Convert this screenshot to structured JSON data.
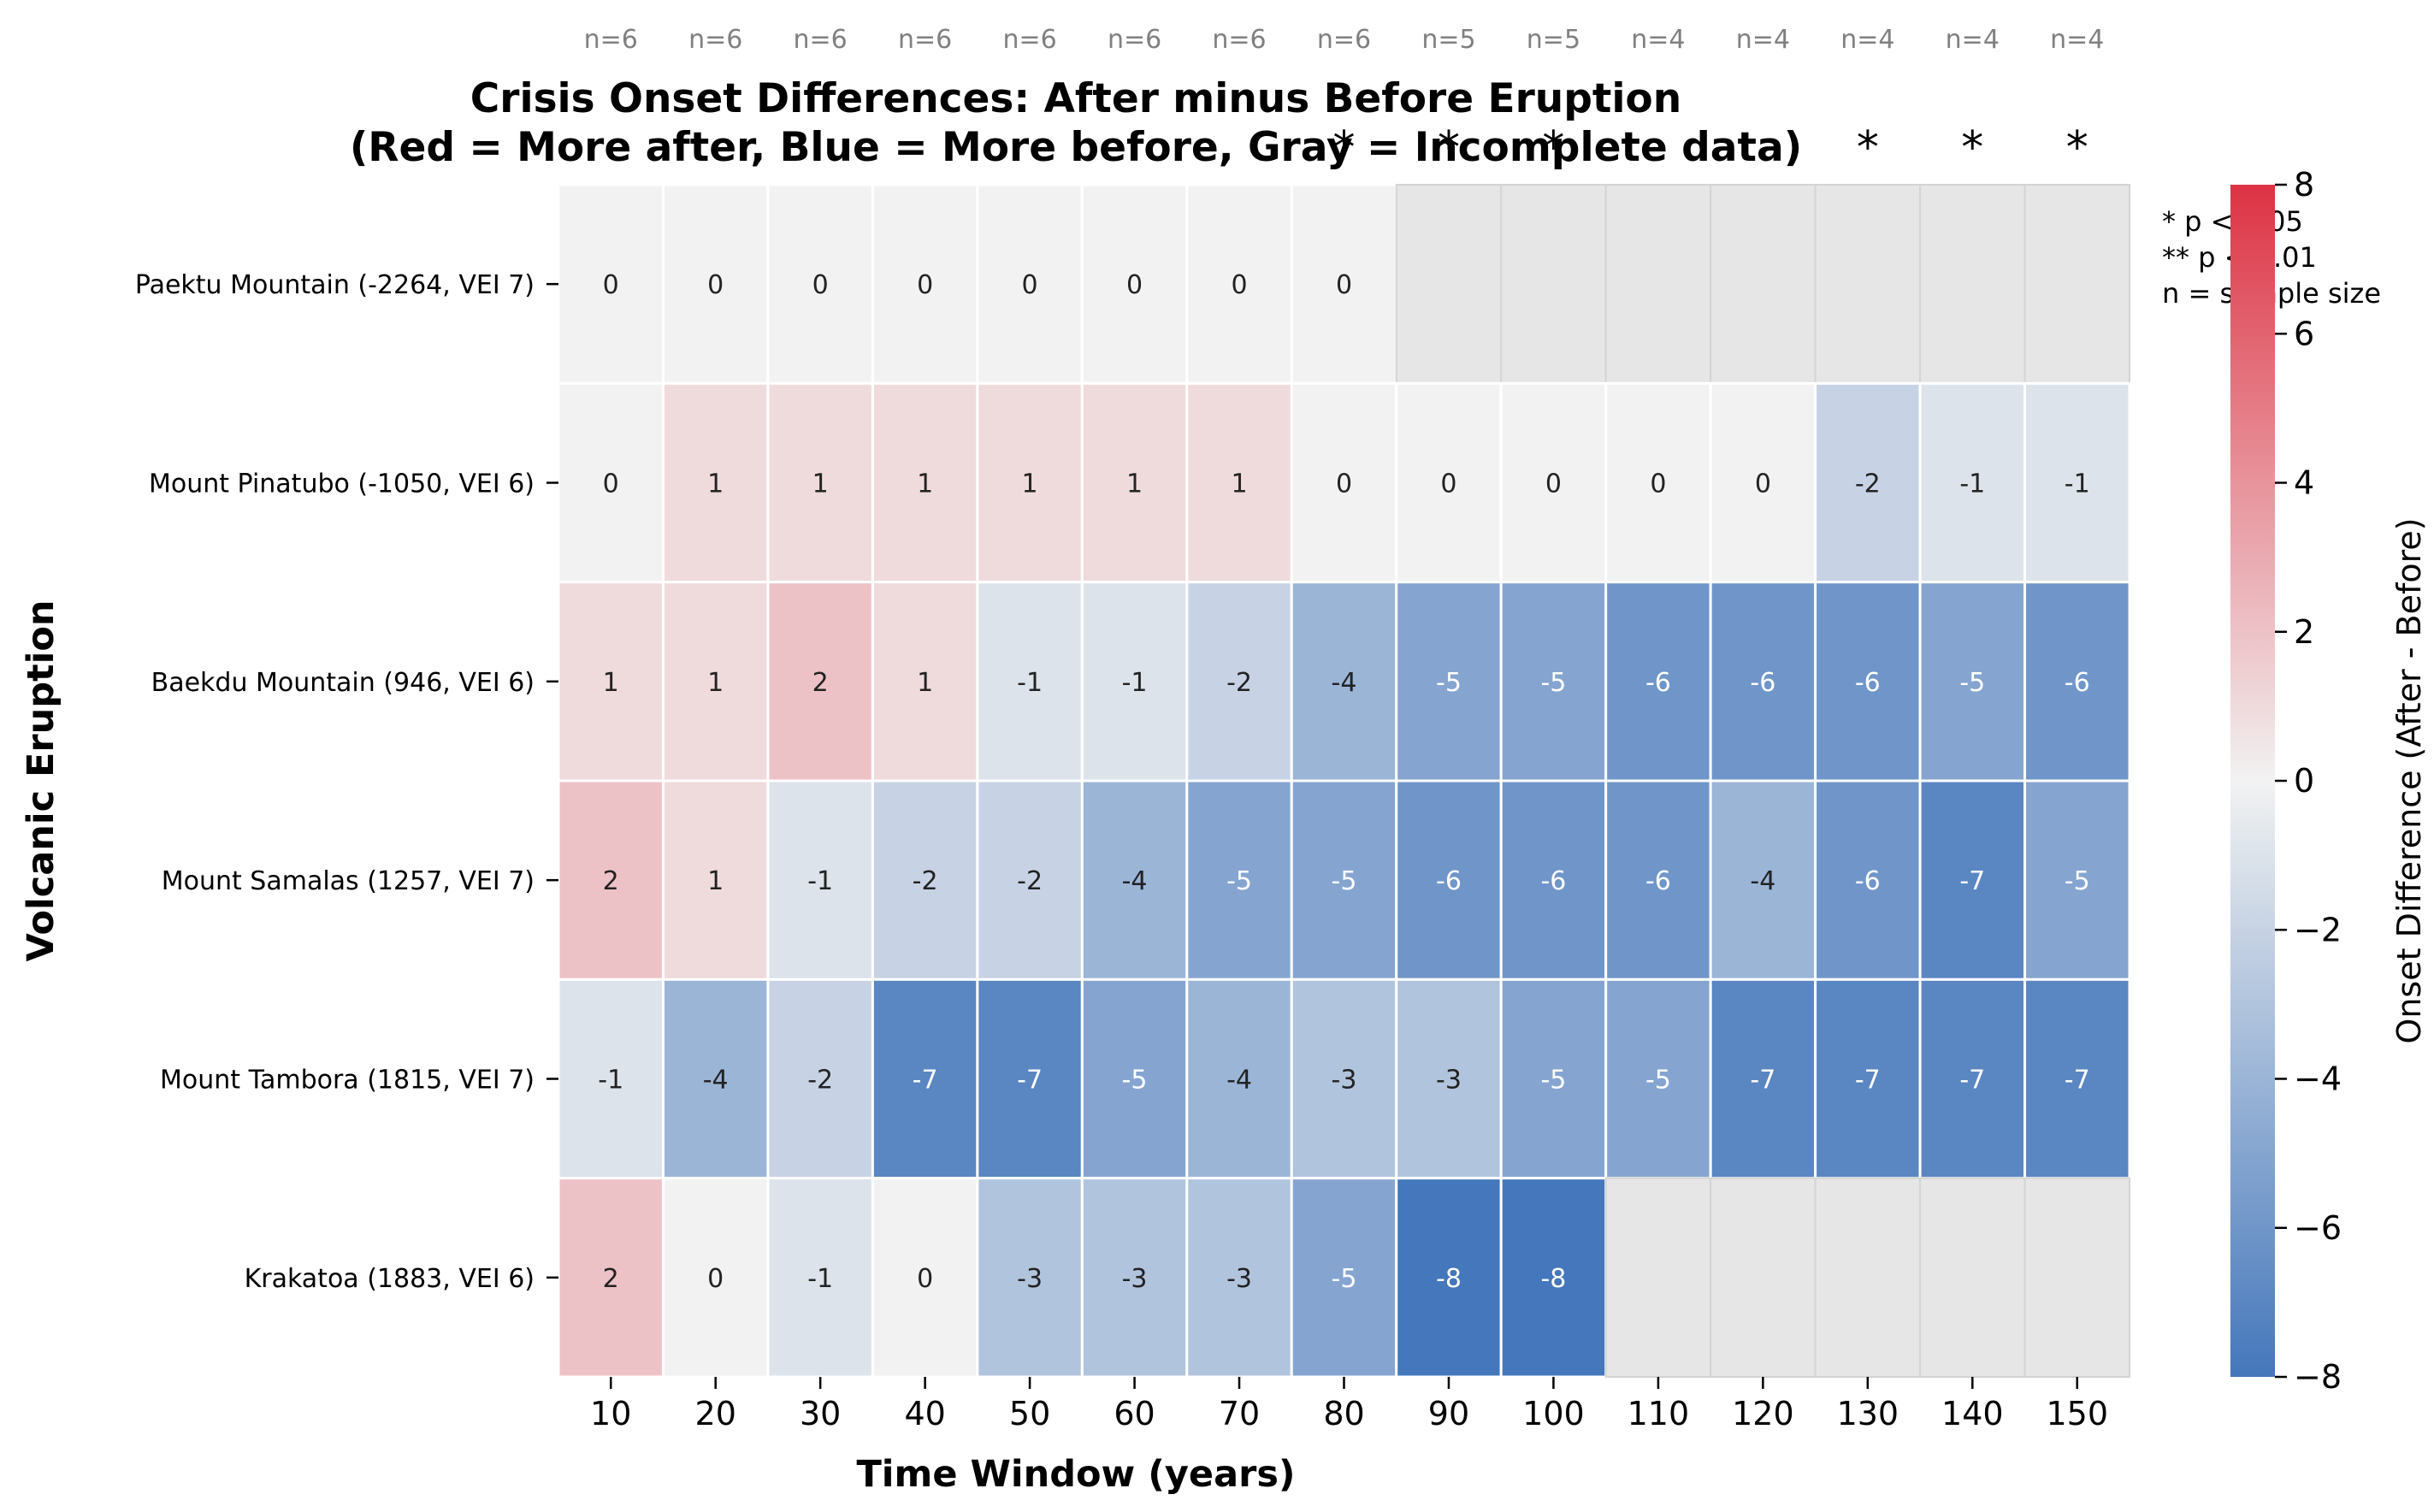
{
  "chart_data": {
    "type": "heatmap",
    "title": "Crisis Onset Differences: After minus Before Eruption",
    "subtitle": "(Red = More after, Blue = More before, Gray = Incomplete data)",
    "xlabel": "Time Window (years)",
    "ylabel": "Volcanic Eruption",
    "colorbar_label": "Onset Difference (After - Before)",
    "colorbar_range": [
      -8,
      8
    ],
    "colorbar_ticks": [
      "−8",
      "−6",
      "−4",
      "−2",
      "0",
      "2",
      "4",
      "6",
      "8"
    ],
    "colors": {
      "min": "#4477bb",
      "mid": "#f2f2f2",
      "max": "#dd3344",
      "missing": "#e6e6e6"
    },
    "x_categories": [
      "10",
      "20",
      "30",
      "40",
      "50",
      "60",
      "70",
      "80",
      "90",
      "100",
      "110",
      "120",
      "130",
      "140",
      "150"
    ],
    "y_categories": [
      "Paektu Mountain  (-2264, VEI 7)",
      "Mount Pinatubo  (-1050, VEI 6)",
      "Baekdu Mountain  (946, VEI 6)",
      "Mount Samalas  (1257, VEI 7)",
      "Mount Tambora (1815, VEI 7)",
      "Krakatoa  (1883, VEI 6)"
    ],
    "values": [
      [
        0,
        0,
        0,
        0,
        0,
        0,
        0,
        0,
        null,
        null,
        null,
        null,
        null,
        null,
        null
      ],
      [
        0,
        1,
        1,
        1,
        1,
        1,
        1,
        0,
        0,
        0,
        0,
        0,
        -2,
        -1,
        -1
      ],
      [
        1,
        1,
        2,
        1,
        -1,
        -1,
        -2,
        -4,
        -5,
        -5,
        -6,
        -6,
        -6,
        -5,
        -6
      ],
      [
        2,
        1,
        -1,
        -2,
        -2,
        -4,
        -5,
        -5,
        -6,
        -6,
        -6,
        -4,
        -6,
        -7,
        -5
      ],
      [
        -1,
        -4,
        -2,
        -7,
        -7,
        -5,
        -4,
        -3,
        -3,
        -5,
        -5,
        -7,
        -7,
        -7,
        -7
      ],
      [
        2,
        0,
        -1,
        0,
        -3,
        -3,
        -3,
        -5,
        -8,
        -8,
        null,
        null,
        null,
        null,
        null
      ]
    ],
    "sample_sizes": [
      "n=6",
      "n=6",
      "n=6",
      "n=6",
      "n=6",
      "n=6",
      "n=6",
      "n=6",
      "n=5",
      "n=5",
      "n=4",
      "n=4",
      "n=4",
      "n=4",
      "n=4"
    ],
    "significance": [
      "",
      "",
      "",
      "",
      "",
      "",
      "",
      "*",
      "*",
      "*",
      "",
      "",
      "*",
      "*",
      "*"
    ],
    "legend_notes": [
      "* p < 0.05",
      "** p < 0.01",
      "n = sample size"
    ]
  }
}
